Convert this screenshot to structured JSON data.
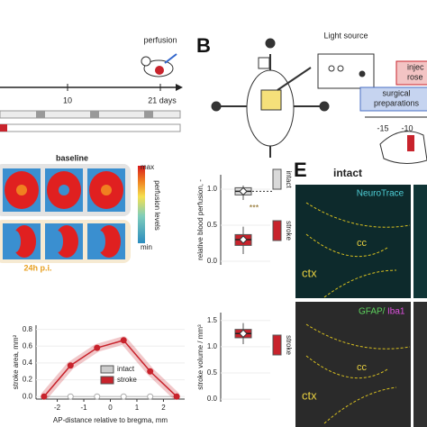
{
  "panel_a": {
    "perfusion_label": "perfusion",
    "tick_10": "10",
    "end_label": "21 days"
  },
  "panel_b": {
    "label": "B",
    "light_source": "Light source",
    "injection": [
      "injec",
      "rose"
    ],
    "surgical": [
      "surgical",
      "preparations"
    ],
    "ticks": [
      "-15",
      "-10"
    ]
  },
  "panel_c": {
    "baseline": "baseline",
    "max": "max",
    "min": "min",
    "colorbar_label": "perfusion levels",
    "post_label": "24h p.i."
  },
  "perfusion_box": {
    "ylabel": "relative blood perfusion, -",
    "ylim": [
      -0.05,
      1.2
    ],
    "yticks": [
      {
        "value": 0,
        "label": "0.0"
      },
      {
        "value": 0.5,
        "label": "0.5"
      },
      {
        "value": 1,
        "label": "1.0"
      }
    ],
    "boxes": [
      {
        "name": "intact",
        "color": "#d9d9d9",
        "median": 0.97,
        "q1": 0.92,
        "q3": 1.02,
        "low": 0.85,
        "high": 1.05
      },
      {
        "name": "stroke",
        "color": "#c8232c",
        "median": 0.3,
        "q1": 0.22,
        "q3": 0.37,
        "low": 0.1,
        "high": 0.48
      }
    ],
    "significance": "***"
  },
  "stroke_area": {
    "ylabel": "stroke area, mm²",
    "xlabel": "AP-distance relative to bregma, mm",
    "x": [
      -2.5,
      -1.5,
      -0.5,
      0.5,
      1.5,
      2.5
    ],
    "series": [
      {
        "name": "intact",
        "color": "#cccccc",
        "values": [
          0,
          0,
          0,
          0,
          0,
          0
        ]
      },
      {
        "name": "stroke",
        "color": "#c8232c",
        "values": [
          0,
          0.37,
          0.58,
          0.67,
          0.3,
          0
        ]
      }
    ],
    "xlim": [
      -2.8,
      2.8
    ],
    "xticks": [
      -2,
      -1,
      0,
      1,
      2
    ],
    "ylim": [
      -0.03,
      0.85
    ],
    "yticks": [
      {
        "value": 0,
        "label": "0.0"
      },
      {
        "value": 0.2,
        "label": "0.2"
      },
      {
        "value": 0.4,
        "label": "0.4"
      },
      {
        "value": 0.6,
        "label": "0.6"
      },
      {
        "value": 0.8,
        "label": "0.8"
      }
    ]
  },
  "stroke_volume": {
    "ylabel": "stroke volume / mm³",
    "ylim": [
      -0.05,
      1.65
    ],
    "yticks": [
      {
        "value": 0,
        "label": "0.0"
      },
      {
        "value": 0.5,
        "label": "0.5"
      },
      {
        "value": 1,
        "label": "1.0"
      },
      {
        "value": 1.5,
        "label": "1.5"
      }
    ],
    "box": {
      "name": "stroke",
      "color": "#c8232c",
      "median": 1.25,
      "q1": 1.17,
      "q3": 1.33,
      "low": 1.05,
      "high": 1.45
    }
  },
  "panel_e": {
    "label": "E",
    "title": "intact",
    "stain_1": "NeuroTrace",
    "stain_2a": "GFAP/",
    "stain_2b": "Iba1",
    "regions": [
      "ctx",
      "cc",
      "ctx",
      "cc"
    ]
  }
}
